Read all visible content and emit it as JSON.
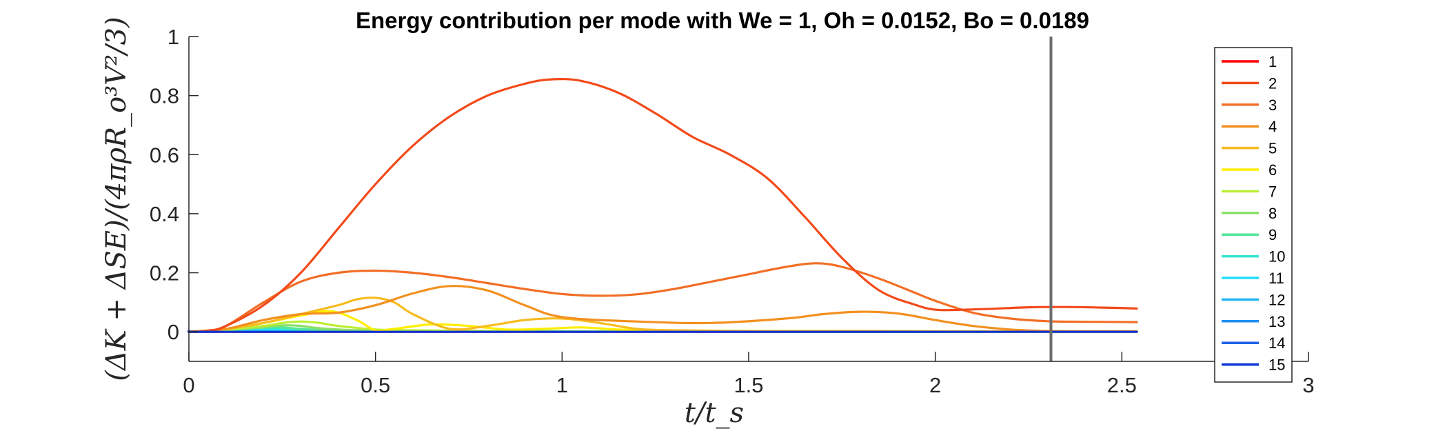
{
  "chart_data": {
    "type": "line",
    "title": "Energy contribution per mode with We = 1, Oh = 0.0152, Bo = 0.0189",
    "xlabel": "t/t_s",
    "ylabel": "(ΔK + ΔSE)/(4πρR_o³V²/3)",
    "xlim": [
      0,
      3
    ],
    "ylim": [
      -0.1,
      1
    ],
    "xticks": [
      "0",
      "0.5",
      "1",
      "1.5",
      "2",
      "2.5",
      "3"
    ],
    "yticks": [
      "0",
      "0.2",
      "0.4",
      "0.6",
      "0.8",
      "1"
    ],
    "grid": false,
    "legend_position": "right",
    "vertical_marker_x": 2.31,
    "series": [
      {
        "name": "1",
        "color": "#ff0000",
        "x": [
          0,
          2.54
        ],
        "y": [
          0,
          0
        ]
      },
      {
        "name": "2",
        "color": "#f24a1a",
        "x": [
          0,
          0.05,
          0.1,
          0.2,
          0.3,
          0.4,
          0.5,
          0.6,
          0.7,
          0.8,
          0.9,
          0.97,
          1.05,
          1.15,
          1.25,
          1.35,
          1.45,
          1.55,
          1.65,
          1.75,
          1.85,
          1.95,
          2.0,
          2.05,
          2.15,
          2.25,
          2.35,
          2.45,
          2.54
        ],
        "y": [
          0,
          0.003,
          0.02,
          0.09,
          0.2,
          0.35,
          0.5,
          0.63,
          0.73,
          0.8,
          0.84,
          0.855,
          0.85,
          0.81,
          0.74,
          0.66,
          0.6,
          0.52,
          0.39,
          0.25,
          0.14,
          0.09,
          0.075,
          0.074,
          0.078,
          0.083,
          0.084,
          0.082,
          0.079
        ]
      },
      {
        "name": "3",
        "color": "#f26e26",
        "x": [
          0,
          0.05,
          0.1,
          0.2,
          0.3,
          0.4,
          0.5,
          0.6,
          0.7,
          0.8,
          0.9,
          1.0,
          1.1,
          1.2,
          1.3,
          1.4,
          1.5,
          1.6,
          1.68,
          1.75,
          1.85,
          1.95,
          2.0,
          2.1,
          2.2,
          2.3,
          2.4,
          2.54
        ],
        "y": [
          0,
          0.004,
          0.02,
          0.1,
          0.17,
          0.2,
          0.207,
          0.2,
          0.185,
          0.165,
          0.145,
          0.128,
          0.122,
          0.127,
          0.145,
          0.17,
          0.195,
          0.22,
          0.232,
          0.22,
          0.18,
          0.13,
          0.105,
          0.065,
          0.045,
          0.036,
          0.034,
          0.033
        ]
      },
      {
        "name": "4",
        "color": "#f2901f",
        "x": [
          0,
          0.1,
          0.2,
          0.3,
          0.4,
          0.5,
          0.6,
          0.7,
          0.8,
          0.9,
          1.0,
          1.2,
          1.4,
          1.6,
          1.7,
          1.8,
          1.9,
          2.0,
          2.1,
          2.2,
          2.3,
          2.4,
          2.54
        ],
        "y": [
          0,
          0.01,
          0.04,
          0.06,
          0.065,
          0.09,
          0.13,
          0.155,
          0.14,
          0.09,
          0.05,
          0.035,
          0.03,
          0.045,
          0.06,
          0.068,
          0.062,
          0.04,
          0.02,
          0.008,
          0.003,
          0.002,
          0.002
        ]
      },
      {
        "name": "5",
        "color": "#f7bb1e",
        "x": [
          0,
          0.1,
          0.2,
          0.3,
          0.4,
          0.45,
          0.5,
          0.55,
          0.6,
          0.7,
          0.8,
          0.9,
          1.0,
          1.1,
          1.2,
          1.3,
          1.5,
          1.8,
          2.0,
          2.54
        ],
        "y": [
          0,
          0.01,
          0.03,
          0.06,
          0.09,
          0.11,
          0.115,
          0.1,
          0.06,
          0.01,
          0.02,
          0.04,
          0.045,
          0.03,
          0.01,
          0.005,
          0.003,
          0.003,
          0.002,
          0.001
        ]
      },
      {
        "name": "6",
        "color": "#ffee00",
        "x": [
          0,
          0.1,
          0.2,
          0.3,
          0.38,
          0.45,
          0.5,
          0.55,
          0.65,
          0.75,
          0.85,
          0.95,
          1.05,
          1.15,
          1.3,
          1.6,
          2.0,
          2.54
        ],
        "y": [
          0,
          0.01,
          0.03,
          0.055,
          0.07,
          0.04,
          0.005,
          0.01,
          0.025,
          0.02,
          0.008,
          0.01,
          0.015,
          0.008,
          0.003,
          0.001,
          0,
          0
        ]
      },
      {
        "name": "7",
        "color": "#bbee33",
        "x": [
          0,
          0.1,
          0.2,
          0.25,
          0.3,
          0.35,
          0.4,
          0.5,
          0.6,
          0.8,
          1.0,
          2.54
        ],
        "y": [
          0,
          0.008,
          0.02,
          0.03,
          0.035,
          0.03,
          0.02,
          0.008,
          0.005,
          0.003,
          0.001,
          0
        ]
      },
      {
        "name": "8",
        "color": "#88e066",
        "x": [
          0,
          0.1,
          0.2,
          0.25,
          0.3,
          0.35,
          0.45,
          0.6,
          0.8,
          2.54
        ],
        "y": [
          0,
          0.006,
          0.015,
          0.022,
          0.02,
          0.012,
          0.005,
          0.003,
          0.001,
          0
        ]
      },
      {
        "name": "9",
        "color": "#55e699",
        "x": [
          0,
          0.1,
          0.18,
          0.22,
          0.3,
          0.4,
          0.6,
          2.54
        ],
        "y": [
          0,
          0.006,
          0.015,
          0.018,
          0.01,
          0.004,
          0.002,
          0
        ]
      },
      {
        "name": "10",
        "color": "#33e6cc",
        "x": [
          0,
          0.1,
          0.18,
          0.25,
          0.35,
          0.5,
          2.54
        ],
        "y": [
          0,
          0.005,
          0.012,
          0.01,
          0.004,
          0.002,
          0
        ]
      },
      {
        "name": "11",
        "color": "#22ddff",
        "x": [
          0,
          0.1,
          0.18,
          0.25,
          0.4,
          2.54
        ],
        "y": [
          0,
          0.004,
          0.008,
          0.006,
          0.002,
          0
        ]
      },
      {
        "name": "12",
        "color": "#1fb8f2",
        "x": [
          0,
          0.1,
          0.2,
          0.3,
          2.54
        ],
        "y": [
          0,
          0.003,
          0.005,
          0.003,
          0
        ]
      },
      {
        "name": "13",
        "color": "#1f8ef2",
        "x": [
          0,
          0.1,
          0.2,
          0.3,
          2.54
        ],
        "y": [
          0,
          0.002,
          0.003,
          0.002,
          0
        ]
      },
      {
        "name": "14",
        "color": "#1f62e6",
        "x": [
          0,
          0.1,
          0.2,
          2.54
        ],
        "y": [
          0,
          0.001,
          0.002,
          0
        ]
      },
      {
        "name": "15",
        "color": "#0a33d9",
        "x": [
          0,
          2.54
        ],
        "y": [
          0,
          0
        ]
      }
    ]
  }
}
